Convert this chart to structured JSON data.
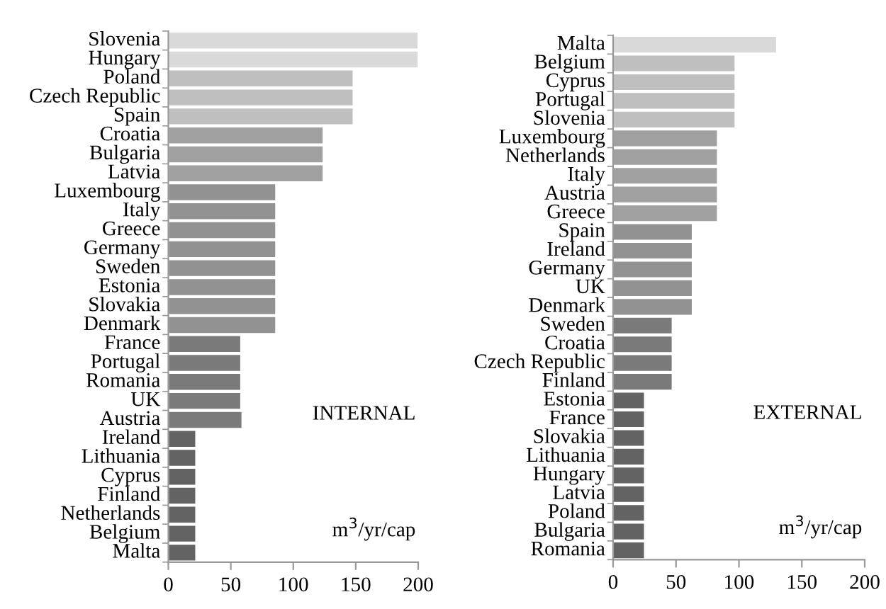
{
  "chart_data": [
    {
      "type": "bar",
      "orientation": "horizontal",
      "categories": [
        "Slovenia",
        "Hungary",
        "Poland",
        "Czech Republic",
        "Spain",
        "Croatia",
        "Bulgaria",
        "Latvia",
        "Luxembourg",
        "Italy",
        "Greece",
        "Germany",
        "Sweden",
        "Estonia",
        "Slovakia",
        "Denmark",
        "France",
        "Portugal",
        "Romania",
        "UK",
        "Austria",
        "Ireland",
        "Lithuania",
        "Cyprus",
        "Finland",
        "Netherlands",
        "Belgium",
        "Malta"
      ],
      "values": [
        200,
        200,
        148,
        148,
        148,
        124,
        124,
        124,
        86,
        86,
        86,
        86,
        86,
        86,
        86,
        86,
        58,
        58,
        58,
        58,
        59,
        22,
        22,
        22,
        22,
        22,
        22,
        22
      ],
      "colors": [
        "#d9d9d9",
        "#d9d9d9",
        "#bfbfbf",
        "#bfbfbf",
        "#bfbfbf",
        "#a0a0a0",
        "#a0a0a0",
        "#a0a0a0",
        "#929292",
        "#929292",
        "#929292",
        "#929292",
        "#929292",
        "#929292",
        "#929292",
        "#929292",
        "#7a7a7a",
        "#7a7a7a",
        "#7a7a7a",
        "#7a7a7a",
        "#7a7a7a",
        "#636363",
        "#636363",
        "#636363",
        "#636363",
        "#636363",
        "#636363",
        "#636363"
      ],
      "xlim": [
        0,
        200
      ],
      "xticks": [
        0,
        50,
        100,
        150,
        200
      ],
      "grid": false,
      "legend": false,
      "annotations": [
        "INTERNAL",
        "m$^{3}$/yr/cap"
      ]
    },
    {
      "type": "bar",
      "orientation": "horizontal",
      "categories": [
        "Malta",
        "Belgium",
        "Cyprus",
        "Portugal",
        "Slovenia",
        "Luxembourg",
        "Netherlands",
        "Italy",
        "Austria",
        "Greece",
        "Spain",
        "Ireland",
        "Germany",
        "UK",
        "Denmark",
        "Sweden",
        "Croatia",
        "Czech Republic",
        "Finland",
        "Estonia",
        "France",
        "Slovakia",
        "Lithuania",
        "Hungary",
        "Latvia",
        "Poland",
        "Bulgaria",
        "Romania"
      ],
      "values": [
        130,
        97,
        97,
        97,
        97,
        83,
        83,
        83,
        83,
        83,
        63,
        63,
        63,
        63,
        63,
        47,
        47,
        47,
        47,
        25,
        25,
        25,
        25,
        25,
        25,
        25,
        25,
        25
      ],
      "colors": [
        "#d9d9d9",
        "#bfbfbf",
        "#bfbfbf",
        "#bfbfbf",
        "#bfbfbf",
        "#a0a0a0",
        "#a0a0a0",
        "#a0a0a0",
        "#a0a0a0",
        "#a0a0a0",
        "#929292",
        "#929292",
        "#929292",
        "#929292",
        "#929292",
        "#7a7a7a",
        "#7a7a7a",
        "#7a7a7a",
        "#7a7a7a",
        "#636363",
        "#636363",
        "#636363",
        "#636363",
        "#636363",
        "#636363",
        "#636363",
        "#636363",
        "#636363"
      ],
      "xlim": [
        0,
        200
      ],
      "xticks": [
        0,
        50,
        100,
        150,
        200
      ],
      "grid": false,
      "legend": false,
      "annotations": [
        "EXTERNAL",
        "m$^{3}$/yr/cap"
      ]
    }
  ]
}
